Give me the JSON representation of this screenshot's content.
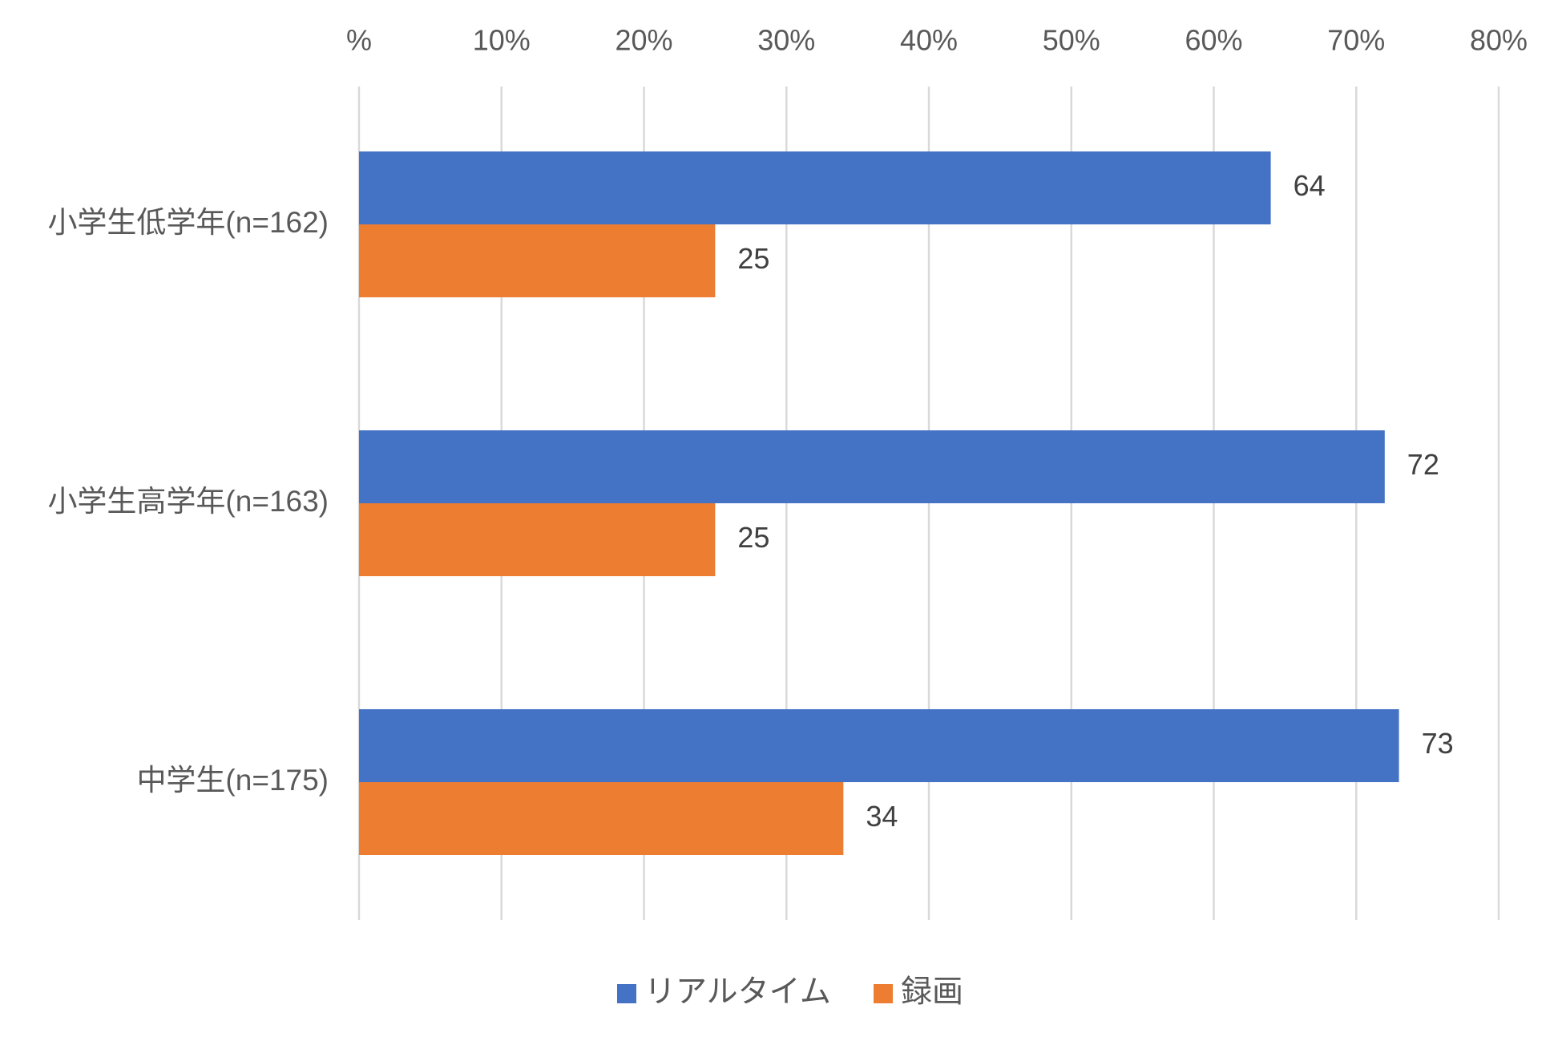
{
  "chart_data": {
    "type": "bar",
    "orientation": "horizontal",
    "categories": [
      "小学生低学年(n=162)",
      "小学生高学年(n=163)",
      "中学生(n=175)"
    ],
    "series": [
      {
        "name": "リアルタイム",
        "color": "#4472C4",
        "values": [
          64,
          72,
          73
        ]
      },
      {
        "name": "録画",
        "color": "#ED7D31",
        "values": [
          25,
          25,
          34
        ]
      }
    ],
    "x_ticks": [
      "%",
      "10%",
      "20%",
      "30%",
      "40%",
      "50%",
      "60%",
      "70%",
      "80%"
    ],
    "xlim": [
      0,
      80
    ],
    "x_axis_position": "top",
    "grid": true,
    "legend": "bottom",
    "data_labels": true
  }
}
